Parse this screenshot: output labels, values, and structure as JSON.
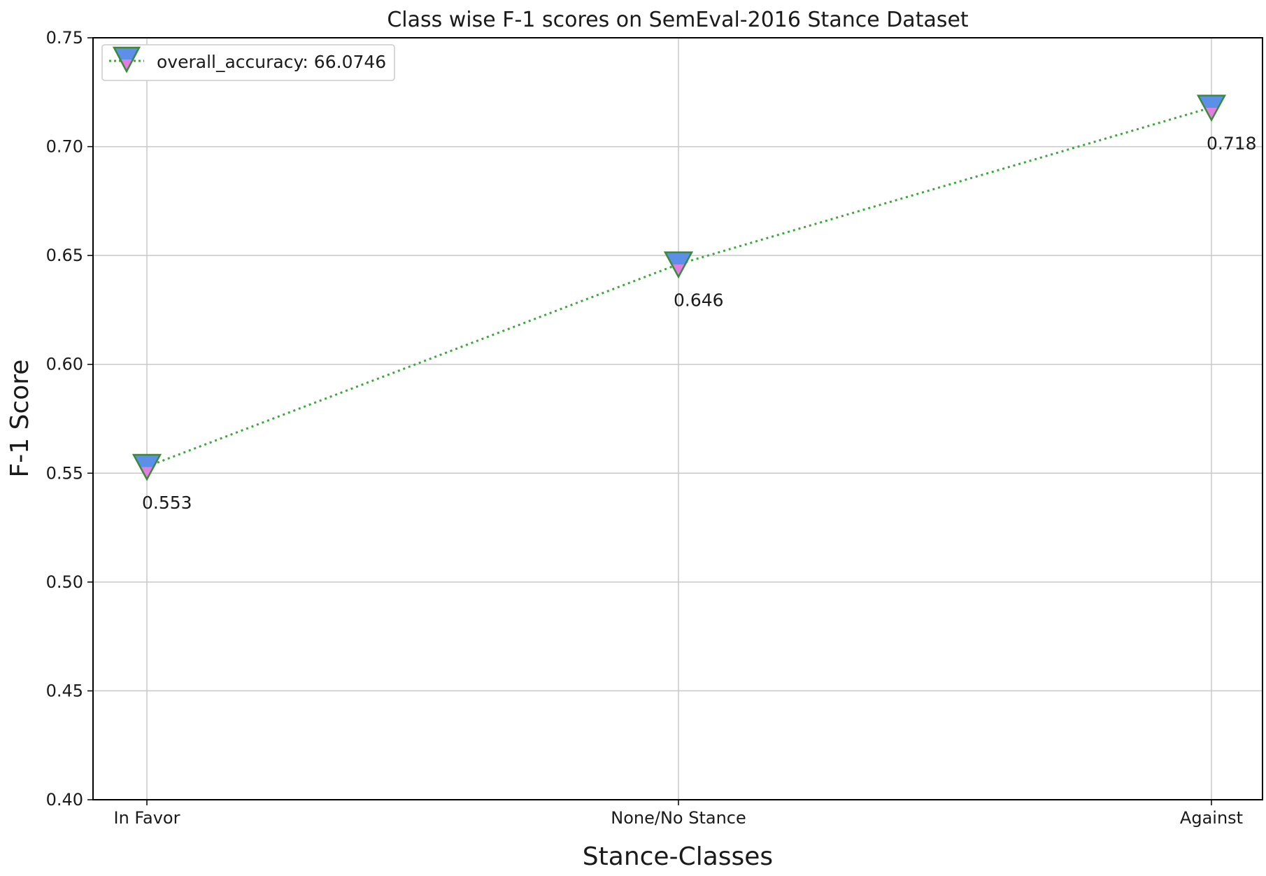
{
  "chart_data": {
    "type": "line",
    "title": "Class wise F-1 scores on SemEval-2016 Stance Dataset",
    "xlabel": "Stance-Classes",
    "ylabel": "F-1 Score",
    "categories": [
      "In Favor",
      "None/No Stance",
      "Against"
    ],
    "series": [
      {
        "name": "overall_accuracy: 66.0746",
        "values": [
          0.553,
          0.646,
          0.718
        ]
      }
    ],
    "data_labels": [
      "0.553",
      "0.646",
      "0.718"
    ],
    "ylim": [
      0.4,
      0.75
    ],
    "yticks": [
      "0.40",
      "0.45",
      "0.50",
      "0.55",
      "0.60",
      "0.65",
      "0.70",
      "0.75"
    ],
    "grid": true,
    "legend_position": "upper-left",
    "line_style": "dotted",
    "marker": "triangle-down",
    "colors": {
      "line": "#3aa83a",
      "marker_edge": "#3a8a3a",
      "marker_fill_top": "#5b8fe8",
      "marker_fill_bottom": "#e27ee0",
      "grid": "#c8c8c8",
      "axes": "#000000"
    }
  }
}
